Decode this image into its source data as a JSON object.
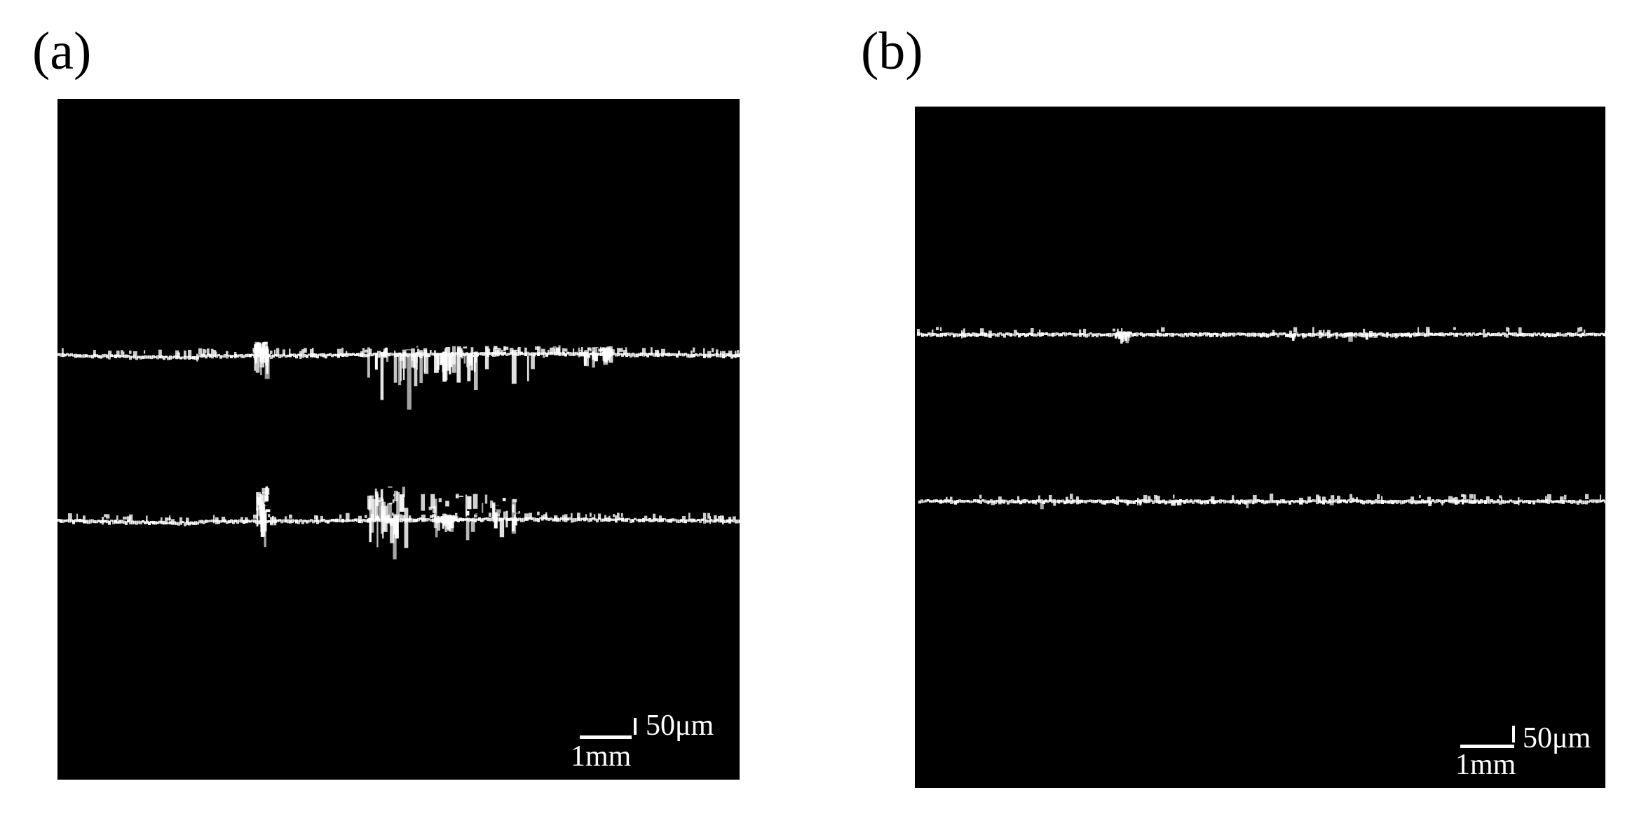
{
  "panels": [
    {
      "label": "(a)",
      "scale_bar": {
        "vertical": "50μm",
        "horizontal": "1mm"
      }
    },
    {
      "label": "(b)",
      "scale_bar": {
        "vertical": "50μm",
        "horizontal": "1mm"
      }
    }
  ]
}
